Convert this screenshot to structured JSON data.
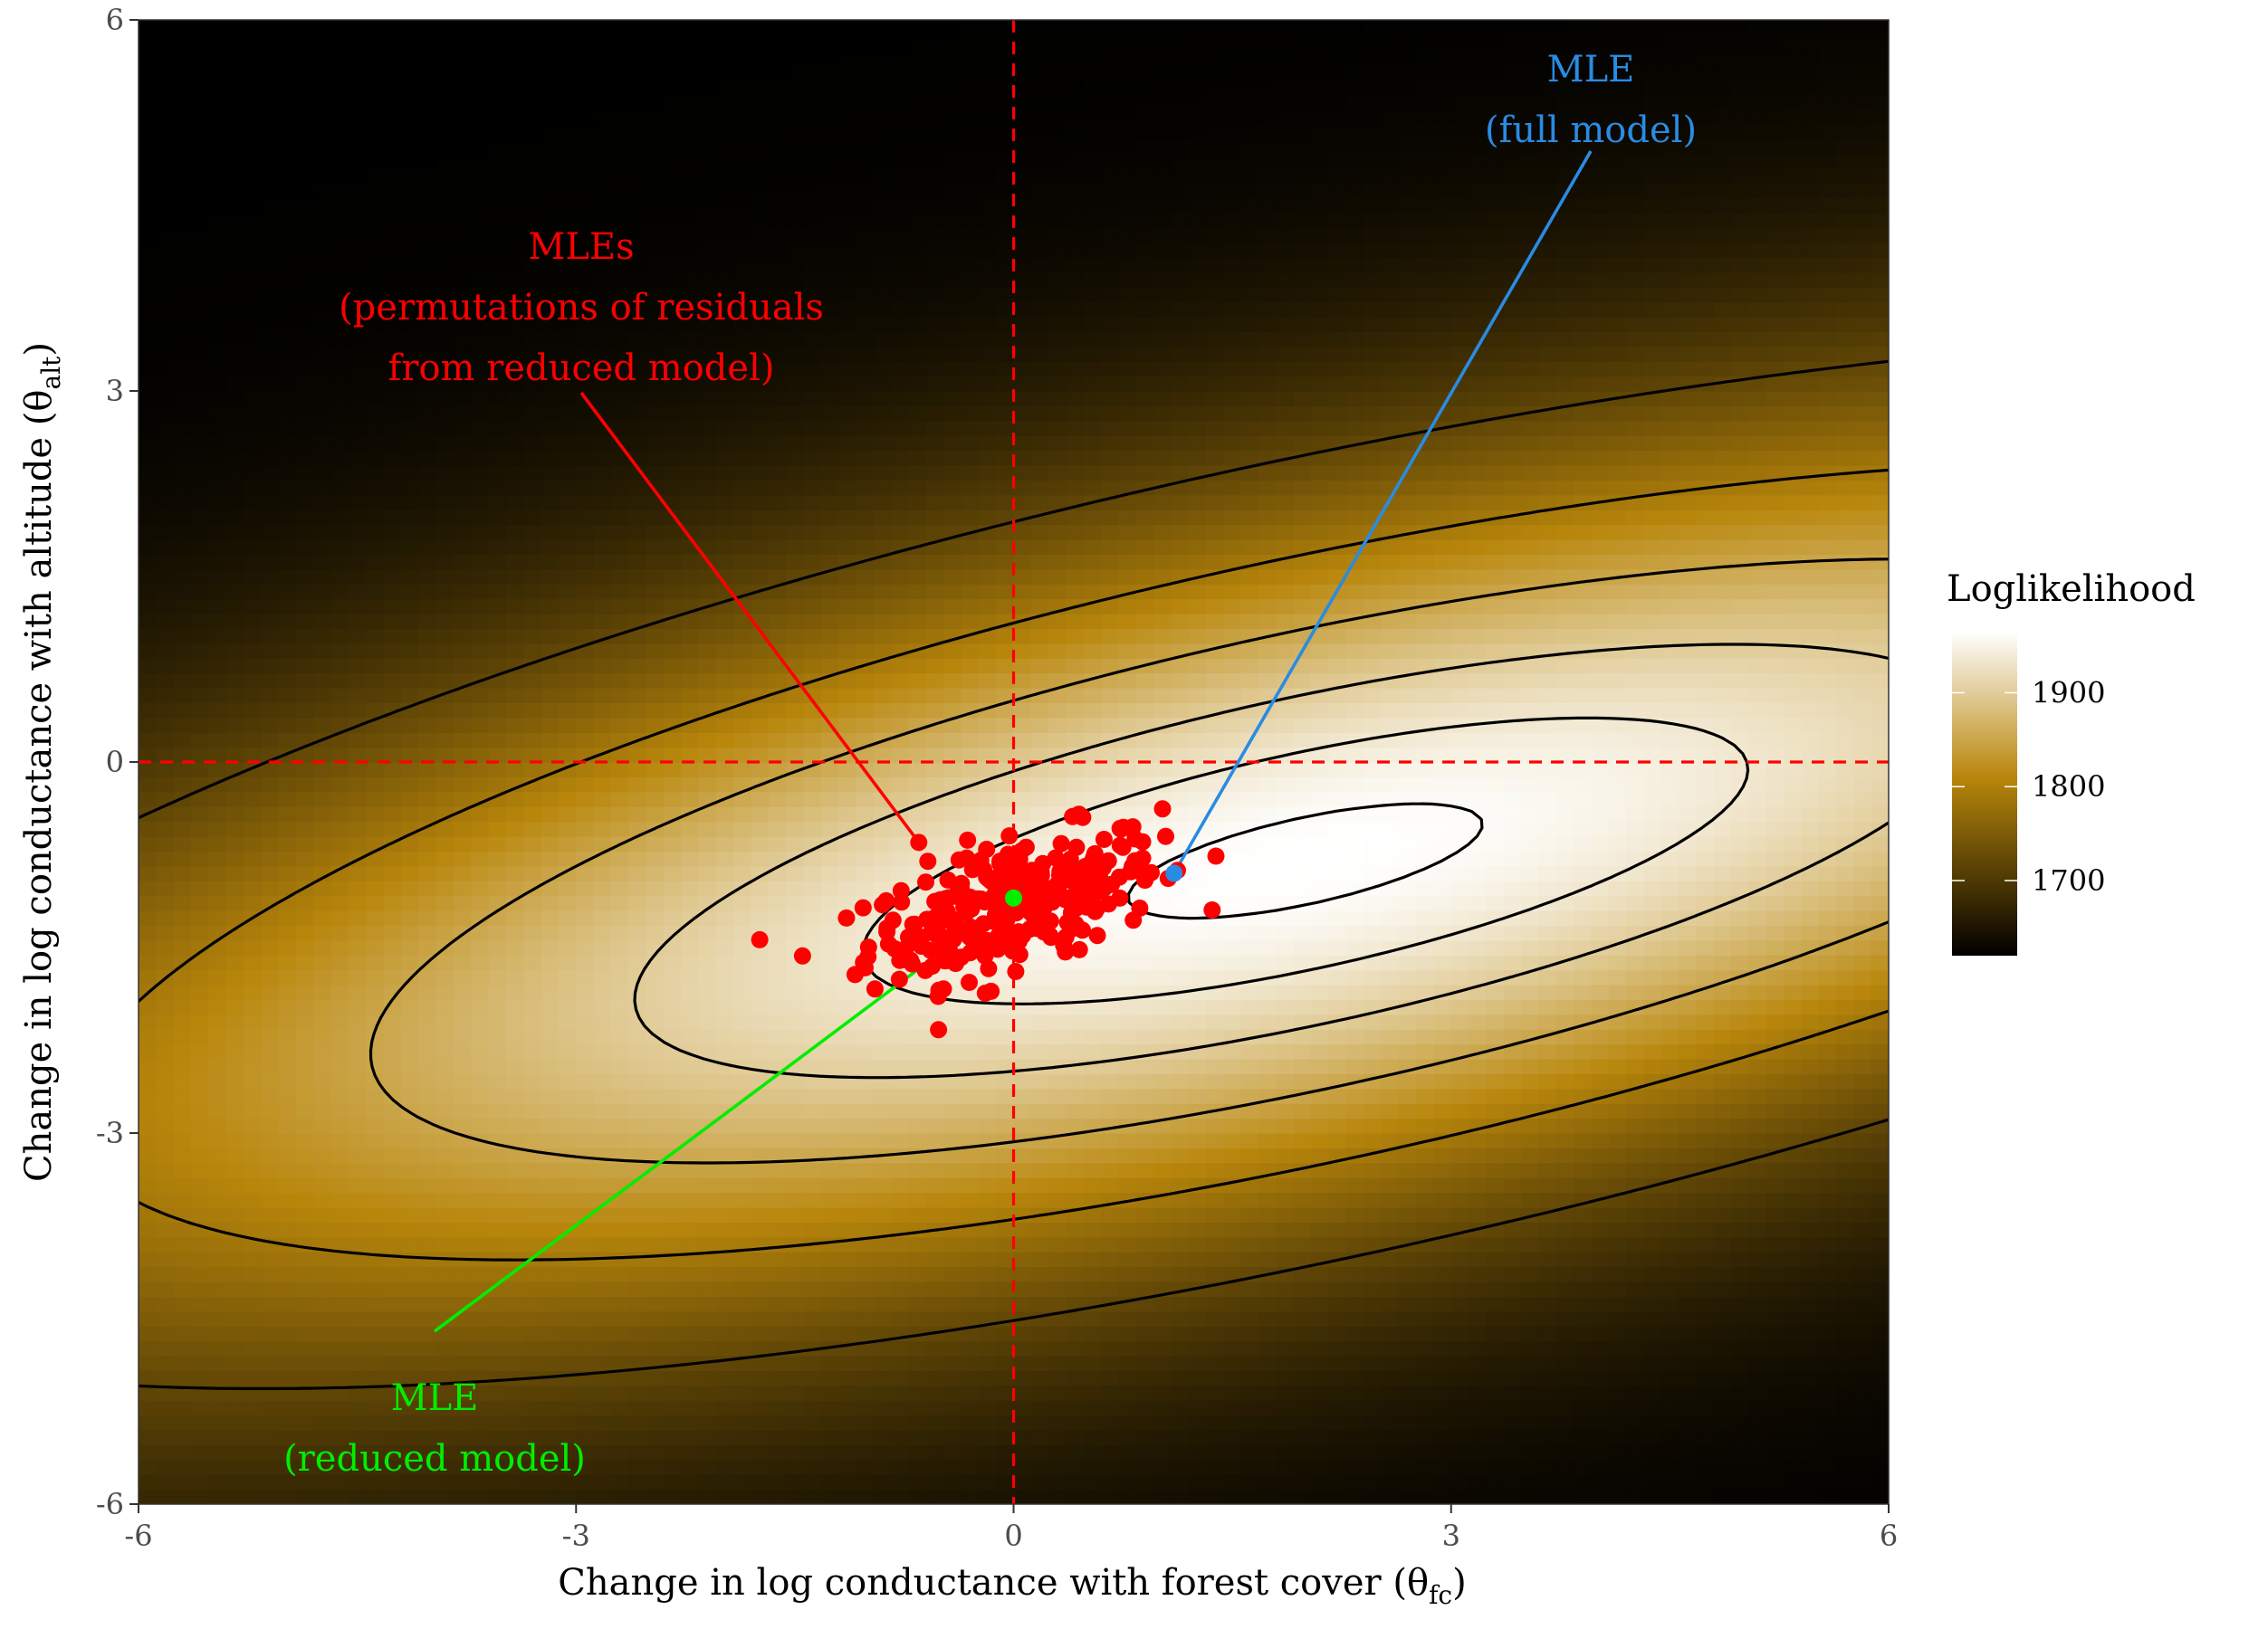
{
  "chart_data": {
    "type": "heatmap",
    "title": "",
    "xlabel": "Change in log conductance with forest cover (θ",
    "xlabel_sub": "fc",
    "xlabel_tail": ")",
    "ylabel": "Change in log conductance with altitude (θ",
    "ylabel_sub": "alt",
    "ylabel_tail": ")",
    "xlim": [
      -6,
      6
    ],
    "ylim": [
      -6,
      6
    ],
    "x_ticks": [
      -6,
      -3,
      0,
      3,
      6
    ],
    "y_ticks": [
      -6,
      -3,
      0,
      3,
      6
    ],
    "x_tick_labels": [
      "-6",
      "-3",
      "0",
      "3",
      "6"
    ],
    "y_tick_labels": [
      "-6",
      "-3",
      "0",
      "3",
      "6"
    ],
    "grid": false,
    "colors": {
      "low": "#000000",
      "mid": "#b8860b",
      "high": "#ffffff",
      "reference_lines": "#ff0000",
      "contours": "#000000",
      "permutation_points": "#ff0000",
      "full_mle": "#2a8be3",
      "reduced_mle": "#00ee00"
    },
    "surface": {
      "peak_loglik": 1965,
      "peak": [
        2.0,
        -0.8
      ],
      "min_loglik": 1620
    },
    "legend": {
      "title": "Loglikelihood",
      "position": "right",
      "range": [
        1620,
        1965
      ],
      "ticks": [
        1700,
        1800,
        1900
      ],
      "tick_labels": [
        "1700",
        "1800",
        "1900"
      ]
    },
    "reference_lines": {
      "x": 0,
      "y": 0,
      "style": "dashed"
    },
    "contour_levels": [
      1960,
      1935,
      1900,
      1850,
      1790,
      1720
    ],
    "points": {
      "full_mle": {
        "x": 1.1,
        "y": -0.9
      },
      "reduced_mle": {
        "x": 0.0,
        "y": -1.1
      },
      "permutation_mles": {
        "n": 300,
        "center": [
          0.0,
          -1.15
        ],
        "sd": [
          0.5,
          0.3
        ]
      }
    },
    "annotations": [
      {
        "name": "full",
        "lines": [
          "MLE",
          "(full model)"
        ],
        "color": "#2a8be3",
        "target": "full_mle"
      },
      {
        "name": "permutations",
        "lines": [
          "MLEs",
          "(permutations of residuals",
          "from reduced model)"
        ],
        "color": "#ff0000",
        "target": "permutation_point"
      },
      {
        "name": "reduced",
        "lines": [
          "MLE",
          "(reduced model)"
        ],
        "color": "#00ee00",
        "target": "reduced_mle"
      }
    ]
  }
}
